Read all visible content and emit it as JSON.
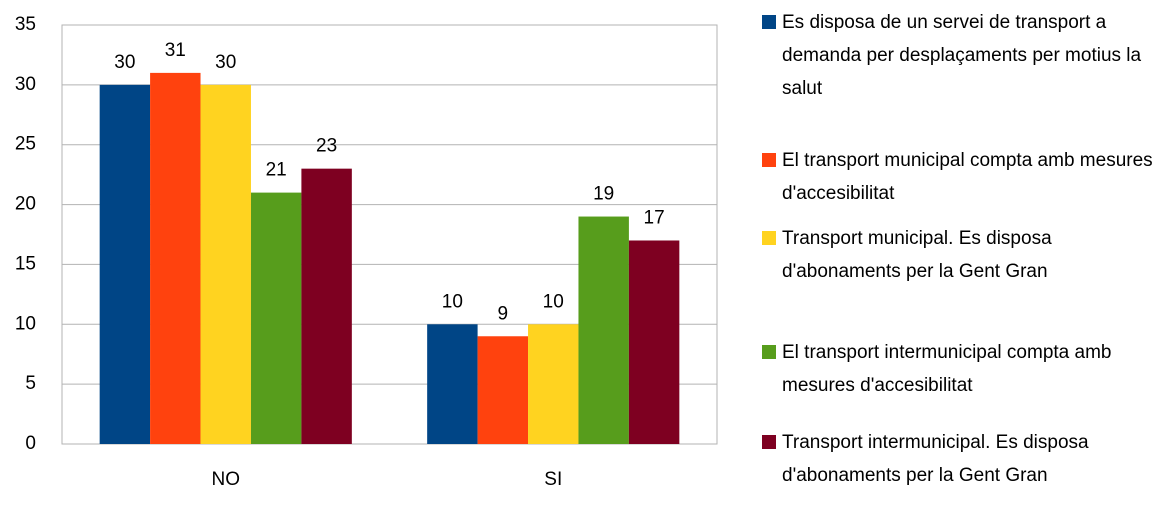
{
  "chart_data": {
    "type": "bar",
    "categories": [
      "NO",
      "SI"
    ],
    "series": [
      {
        "name": "Es disposa de un servei de transport a demanda per desplaçaments per motius la salut",
        "color": "#004586",
        "values": [
          30,
          10
        ]
      },
      {
        "name": "El transport municipal compta amb mesures d'accesibilitat",
        "color": "#ff420e",
        "values": [
          31,
          9
        ]
      },
      {
        "name": "Transport municipal. Es disposa d'abonaments per la Gent Gran",
        "color": "#ffd320",
        "values": [
          30,
          10
        ]
      },
      {
        "name": "El transport intermunicipal compta amb mesures d'accesibilitat",
        "color": "#579d1c",
        "values": [
          21,
          19
        ]
      },
      {
        "name": "Transport intermunicipal. Es disposa d'abonaments per la Gent Gran",
        "color": "#7e0021",
        "values": [
          23,
          17
        ]
      }
    ],
    "ylim": [
      0,
      35
    ],
    "yticks": [
      0,
      5,
      10,
      15,
      20,
      25,
      30,
      35
    ],
    "grid": true,
    "legend": "right"
  }
}
